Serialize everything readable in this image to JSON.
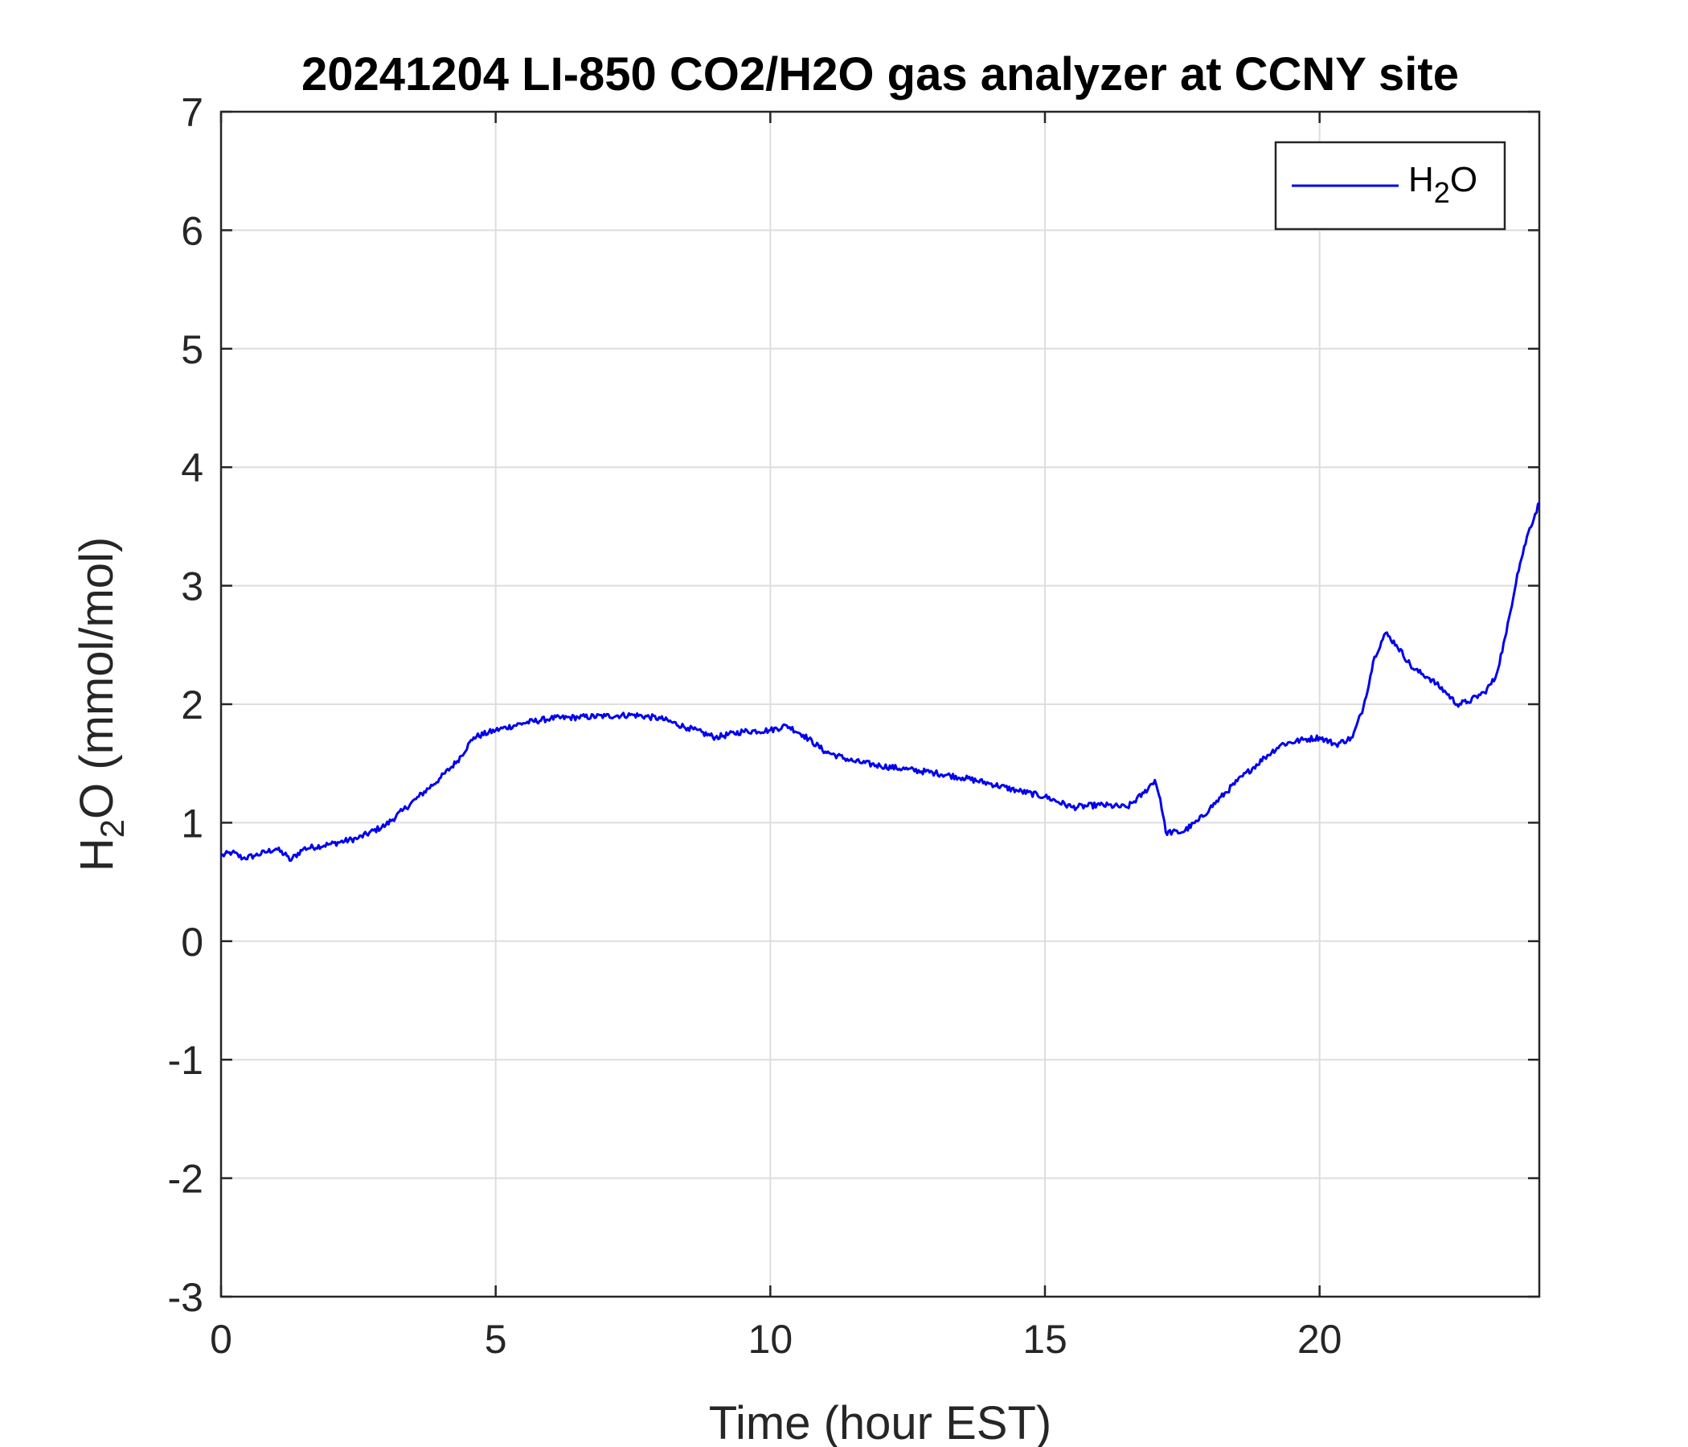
{
  "chart_data": {
    "type": "line",
    "title": "20241204 LI-850 CO2/H2O gas analyzer at CCNY site",
    "xlabel": "Time (hour EST)",
    "ylabel": {
      "base": "H",
      "sub": "2",
      "rest": "O (mmol/mol)"
    },
    "xlim": [
      0,
      24
    ],
    "ylim": [
      -3,
      7
    ],
    "xticks": [
      0,
      5,
      10,
      15,
      20
    ],
    "yticks": [
      -3,
      -2,
      -1,
      0,
      1,
      2,
      3,
      4,
      5,
      6,
      7
    ],
    "grid": true,
    "legend_position": "top-right",
    "series": [
      {
        "name": {
          "base": "H",
          "sub": "2",
          "rest": "O"
        },
        "color": "#0000ee",
        "x": [
          0,
          0.2,
          0.4,
          0.6,
          0.8,
          1.0,
          1.2,
          1.25,
          1.5,
          2.0,
          2.5,
          3.0,
          3.3,
          3.6,
          4.0,
          4.3,
          4.6,
          5.0,
          5.5,
          6.0,
          6.5,
          7.0,
          7.5,
          8.0,
          8.5,
          9.0,
          9.5,
          10.0,
          10.3,
          10.6,
          11.0,
          11.5,
          12.0,
          12.5,
          13.0,
          13.5,
          14.0,
          14.5,
          15.0,
          15.5,
          16.0,
          16.5,
          16.8,
          17.0,
          17.1,
          17.2,
          17.5,
          17.8,
          18.0,
          18.5,
          19.0,
          19.3,
          19.7,
          20.0,
          20.3,
          20.6,
          20.8,
          21.0,
          21.2,
          21.4,
          21.7,
          22.0,
          22.3,
          22.5,
          22.7,
          23.0,
          23.2,
          23.4,
          23.6,
          23.8,
          24.0
        ],
        "values": [
          0.72,
          0.75,
          0.7,
          0.72,
          0.75,
          0.78,
          0.72,
          0.68,
          0.78,
          0.82,
          0.87,
          0.98,
          1.1,
          1.22,
          1.38,
          1.52,
          1.72,
          1.78,
          1.84,
          1.88,
          1.89,
          1.9,
          1.91,
          1.88,
          1.8,
          1.72,
          1.77,
          1.78,
          1.82,
          1.74,
          1.6,
          1.52,
          1.48,
          1.45,
          1.42,
          1.38,
          1.33,
          1.27,
          1.22,
          1.13,
          1.15,
          1.13,
          1.25,
          1.36,
          1.2,
          0.92,
          0.92,
          1.02,
          1.12,
          1.35,
          1.55,
          1.66,
          1.7,
          1.72,
          1.66,
          1.72,
          1.98,
          2.4,
          2.6,
          2.5,
          2.3,
          2.22,
          2.1,
          2.0,
          2.02,
          2.1,
          2.22,
          2.6,
          3.1,
          3.45,
          3.7
        ]
      }
    ]
  }
}
